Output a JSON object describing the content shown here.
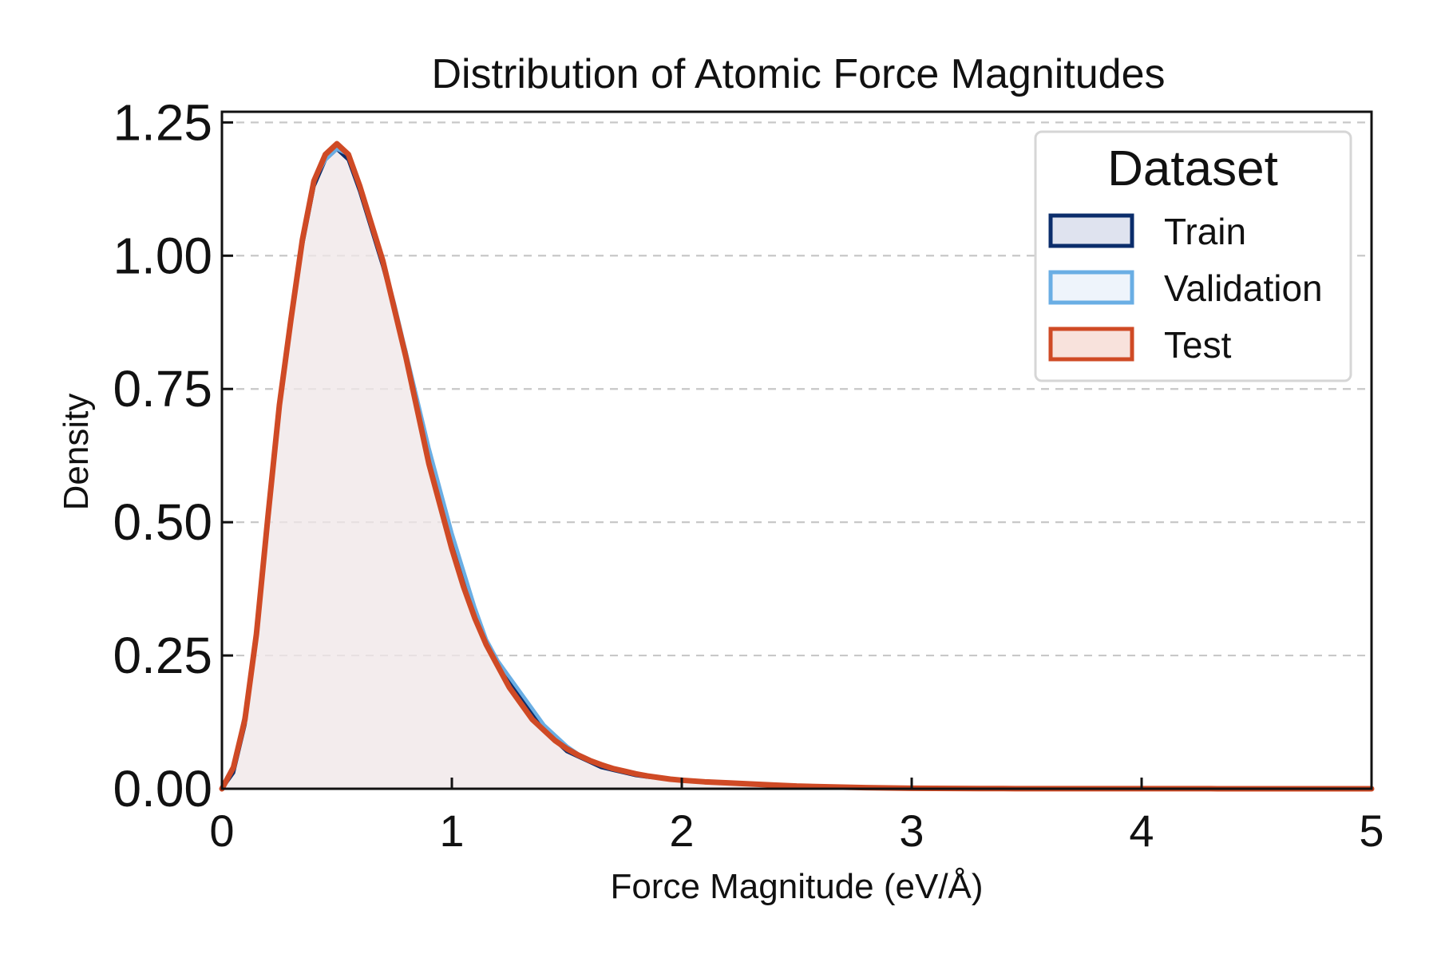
{
  "chart_data": {
    "type": "line",
    "title": "Distribution of Atomic Force Magnitudes",
    "xlabel": "Force Magnitude (eV/Å)",
    "ylabel": "Density",
    "xlim": [
      0,
      5
    ],
    "ylim": [
      0,
      1.27
    ],
    "x_ticks": [
      0,
      1,
      2,
      3,
      4,
      5
    ],
    "x_tick_labels": [
      "0",
      "1",
      "2",
      "3",
      "4",
      "5"
    ],
    "y_ticks": [
      0,
      0.25,
      0.5,
      0.75,
      1.0,
      1.25
    ],
    "y_tick_labels": [
      "0.00",
      "0.25",
      "0.50",
      "0.75",
      "1.00",
      "1.25"
    ],
    "grid": {
      "y": true,
      "x": false,
      "style": "dashed",
      "color": "#c8c8c8"
    },
    "legend": {
      "title": "Dataset",
      "placement": "top-right"
    },
    "x": [
      0,
      0.05,
      0.1,
      0.15,
      0.2,
      0.25,
      0.3,
      0.35,
      0.4,
      0.45,
      0.5,
      0.55,
      0.6,
      0.65,
      0.7,
      0.75,
      0.8,
      0.85,
      0.9,
      0.95,
      1.0,
      1.05,
      1.1,
      1.15,
      1.2,
      1.25,
      1.3,
      1.35,
      1.4,
      1.45,
      1.5,
      1.55,
      1.6,
      1.65,
      1.7,
      1.75,
      1.8,
      1.85,
      1.9,
      1.95,
      2.0,
      2.1,
      2.2,
      2.3,
      2.4,
      2.5,
      2.6,
      2.7,
      2.8,
      2.9,
      3.0,
      3.1,
      3.2,
      3.3,
      3.4,
      3.5,
      3.6,
      3.7,
      3.8,
      3.9,
      4.0,
      4.1,
      4.2,
      4.3,
      4.4,
      4.5,
      4.6,
      4.7,
      4.8,
      4.9,
      5.0
    ],
    "series": [
      {
        "name": "Train",
        "stroke_color": "#0b2d6b",
        "fill_color": "#dfe3ef",
        "values": [
          0.0,
          0.03,
          0.12,
          0.28,
          0.5,
          0.72,
          0.88,
          1.02,
          1.13,
          1.18,
          1.2,
          1.18,
          1.12,
          1.05,
          0.98,
          0.9,
          0.82,
          0.72,
          0.62,
          0.54,
          0.46,
          0.39,
          0.33,
          0.27,
          0.23,
          0.2,
          0.17,
          0.14,
          0.11,
          0.09,
          0.07,
          0.06,
          0.05,
          0.04,
          0.035,
          0.03,
          0.025,
          0.022,
          0.02,
          0.018,
          0.016,
          0.013,
          0.01,
          0.008,
          0.006,
          0.004,
          0.003,
          0.002,
          0.0015,
          0.001,
          0.001,
          0.0008,
          0.0006,
          0.0004,
          0.0003,
          0.0002,
          0.0002,
          0.0002,
          0.0002,
          0.0001,
          0.0001,
          0.0001,
          0.0001,
          0.0001,
          0.0001,
          0.0,
          0.0,
          0.0,
          0.0,
          0.0,
          0.0
        ]
      },
      {
        "name": "Validation",
        "stroke_color": "#6aaee4",
        "fill_color": "#eef4fb",
        "values": [
          0.0,
          0.04,
          0.14,
          0.3,
          0.52,
          0.73,
          0.89,
          1.03,
          1.14,
          1.18,
          1.2,
          1.19,
          1.13,
          1.06,
          0.99,
          0.91,
          0.82,
          0.73,
          0.64,
          0.56,
          0.48,
          0.41,
          0.34,
          0.28,
          0.24,
          0.21,
          0.18,
          0.15,
          0.12,
          0.1,
          0.08,
          0.065,
          0.055,
          0.045,
          0.038,
          0.032,
          0.027,
          0.024,
          0.021,
          0.018,
          0.016,
          0.014,
          0.012,
          0.01,
          0.008,
          0.006,
          0.004,
          0.003,
          0.002,
          0.0015,
          0.001,
          0.0008,
          0.0006,
          0.0004,
          0.0003,
          0.0002,
          0.0002,
          0.0002,
          0.0001,
          0.0001,
          0.0001,
          0.0001,
          0.0001,
          0.0001,
          0.0,
          0.0,
          0.0,
          0.0,
          0.0,
          0.0,
          0.0
        ]
      },
      {
        "name": "Test",
        "stroke_color": "#cf4a25",
        "fill_color": "#f8e2dc",
        "values": [
          0.0,
          0.04,
          0.13,
          0.29,
          0.51,
          0.72,
          0.88,
          1.03,
          1.14,
          1.19,
          1.21,
          1.19,
          1.13,
          1.06,
          0.99,
          0.9,
          0.81,
          0.71,
          0.61,
          0.53,
          0.45,
          0.38,
          0.32,
          0.27,
          0.23,
          0.19,
          0.16,
          0.13,
          0.11,
          0.09,
          0.075,
          0.063,
          0.053,
          0.045,
          0.038,
          0.033,
          0.028,
          0.024,
          0.021,
          0.018,
          0.016,
          0.013,
          0.011,
          0.009,
          0.007,
          0.005,
          0.004,
          0.003,
          0.002,
          0.0015,
          0.001,
          0.0008,
          0.0006,
          0.0004,
          0.0003,
          0.0002,
          0.0002,
          0.0002,
          0.0001,
          0.0001,
          0.0001,
          0.0001,
          0.0001,
          0.0001,
          0.0,
          0.0,
          0.0,
          0.0,
          0.0,
          0.0,
          0.0
        ]
      }
    ]
  }
}
